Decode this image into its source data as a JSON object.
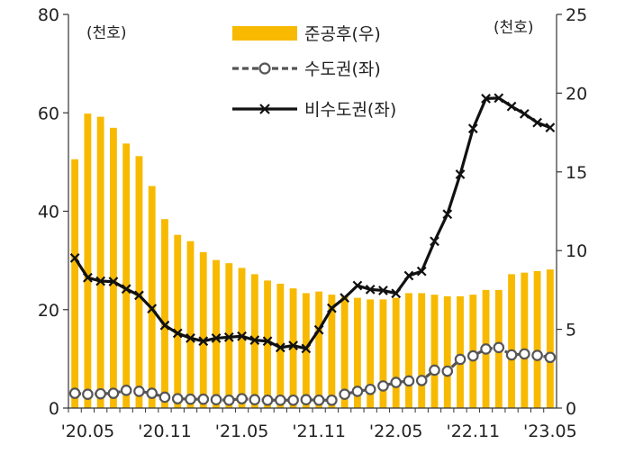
{
  "chart_data": {
    "type": "bar",
    "x": [
      "2020-04",
      "2020-05",
      "2020-06",
      "2020-07",
      "2020-08",
      "2020-09",
      "2020-10",
      "2020-11",
      "2020-12",
      "2021-01",
      "2021-02",
      "2021-03",
      "2021-04",
      "2021-05",
      "2021-06",
      "2021-07",
      "2021-08",
      "2021-09",
      "2021-10",
      "2021-11",
      "2021-12",
      "2022-01",
      "2022-02",
      "2022-03",
      "2022-04",
      "2022-05",
      "2022-06",
      "2022-07",
      "2022-08",
      "2022-09",
      "2022-10",
      "2022-11",
      "2022-12",
      "2023-01",
      "2023-02",
      "2023-03",
      "2023-04",
      "2023-05"
    ],
    "x_tick_labels": [
      "'20.05",
      "'20.11",
      "'21.05",
      "'21.11",
      "'22.05",
      "'22.11",
      "'23.05"
    ],
    "left_unit_label": "(천호)",
    "right_unit_label": "(천호)",
    "left_axis": {
      "ylim": [
        0,
        80
      ],
      "ticks": [
        "0",
        "20",
        "40",
        "60",
        "80"
      ]
    },
    "right_axis": {
      "ylim": [
        0,
        25
      ],
      "ticks": [
        "0",
        "5",
        "10",
        "15",
        "20",
        "25"
      ]
    },
    "legend_position": "top-center",
    "series": [
      {
        "name": "준공후(우)",
        "type": "bar",
        "axis": "right",
        "color": "#F7BA00",
        "values": [
          15.8,
          18.7,
          18.5,
          17.8,
          16.8,
          16.0,
          14.1,
          12.0,
          11.0,
          10.6,
          9.9,
          9.4,
          9.2,
          8.9,
          8.5,
          8.1,
          7.9,
          7.6,
          7.3,
          7.4,
          7.2,
          7.1,
          7.0,
          6.9,
          6.9,
          7.0,
          7.3,
          7.3,
          7.2,
          7.1,
          7.1,
          7.2,
          7.5,
          7.5,
          8.5,
          8.6,
          8.7,
          8.8
        ]
      },
      {
        "name": "수도권(좌)",
        "type": "line",
        "axis": "left",
        "color": "#555555",
        "marker": "circle",
        "dash": true,
        "values": [
          3.0,
          2.8,
          2.9,
          3.0,
          3.6,
          3.4,
          3.0,
          2.2,
          1.9,
          1.8,
          1.8,
          1.7,
          1.6,
          1.9,
          1.7,
          1.6,
          1.6,
          1.6,
          1.7,
          1.6,
          1.6,
          2.8,
          3.4,
          3.8,
          4.5,
          5.2,
          5.5,
          5.6,
          7.7,
          7.5,
          9.9,
          10.6,
          12.0,
          12.3,
          10.8,
          11.0,
          10.7,
          10.3
        ]
      },
      {
        "name": "비수도권(좌)",
        "type": "line",
        "axis": "left",
        "color": "#111111",
        "marker": "x",
        "dash": false,
        "values": [
          30.5,
          26.5,
          25.8,
          25.7,
          24.2,
          22.9,
          20.2,
          16.8,
          15.2,
          14.2,
          13.6,
          14.2,
          14.4,
          14.6,
          13.8,
          13.6,
          12.3,
          12.7,
          12.1,
          15.9,
          20.3,
          22.4,
          24.9,
          24.1,
          23.9,
          23.3,
          26.9,
          27.8,
          33.9,
          39.4,
          47.5,
          56.8,
          62.9,
          63.0,
          61.3,
          59.8,
          58.0,
          57.0
        ]
      }
    ]
  }
}
